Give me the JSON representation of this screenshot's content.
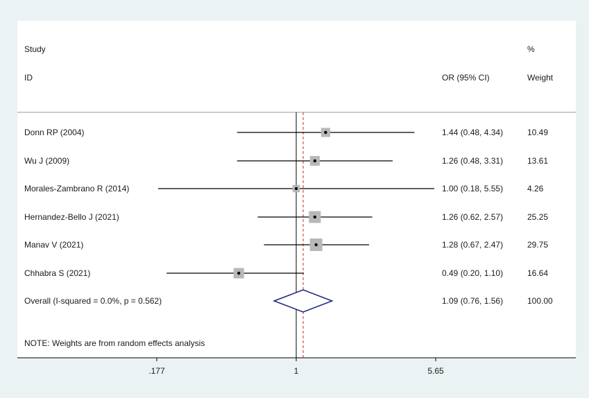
{
  "chart_data": {
    "type": "forest",
    "headers": {
      "study_line1": "Study",
      "study_line2": "ID",
      "or": "OR (95% CI)",
      "weight_line1": "%",
      "weight_line2": "Weight"
    },
    "studies": [
      {
        "id": "Donn RP (2004)",
        "or": 1.44,
        "lower": 0.48,
        "upper": 4.34,
        "or_text": "1.44 (0.48, 4.34)",
        "weight": 10.49,
        "weight_text": "10.49"
      },
      {
        "id": "Wu J (2009)",
        "or": 1.26,
        "lower": 0.48,
        "upper": 3.31,
        "or_text": "1.26 (0.48, 3.31)",
        "weight": 13.61,
        "weight_text": "13.61"
      },
      {
        "id": "Morales-Zambrano R (2014)",
        "or": 1.0,
        "lower": 0.18,
        "upper": 5.55,
        "or_text": "1.00 (0.18, 5.55)",
        "weight": 4.26,
        "weight_text": "4.26"
      },
      {
        "id": "Hernandez-Bello J (2021)",
        "or": 1.26,
        "lower": 0.62,
        "upper": 2.57,
        "or_text": "1.26 (0.62, 2.57)",
        "weight": 25.25,
        "weight_text": "25.25"
      },
      {
        "id": "Manav V (2021)",
        "or": 1.28,
        "lower": 0.67,
        "upper": 2.47,
        "or_text": "1.28 (0.67, 2.47)",
        "weight": 29.75,
        "weight_text": "29.75"
      },
      {
        "id": "Chhabra S (2021)",
        "or": 0.49,
        "lower": 0.2,
        "upper": 1.1,
        "or_text": "0.49 (0.20, 1.10)",
        "weight": 16.64,
        "weight_text": "16.64"
      }
    ],
    "overall": {
      "label": "Overall  (I-squared = 0.0%, p = 0.562)",
      "or": 1.09,
      "lower": 0.76,
      "upper": 1.56,
      "or_text": "1.09 (0.76, 1.56)",
      "weight_text": "100.00"
    },
    "note": "NOTE: Weights are from random effects analysis",
    "x_axis": {
      "scale": "log",
      "ticks": [
        {
          "value": 0.177,
          "label": ".177"
        },
        {
          "value": 1,
          "label": "1"
        },
        {
          "value": 5.65,
          "label": "5.65"
        }
      ],
      "range": [
        0.177,
        5.65
      ]
    },
    "colors": {
      "background": "#eaf2f3",
      "panel": "#ffffff",
      "ci_line": "#000000",
      "marker_box": "#b8b8b8",
      "overall_diamond": "#1a237e",
      "overall_dashed_line": "#c62828"
    }
  }
}
